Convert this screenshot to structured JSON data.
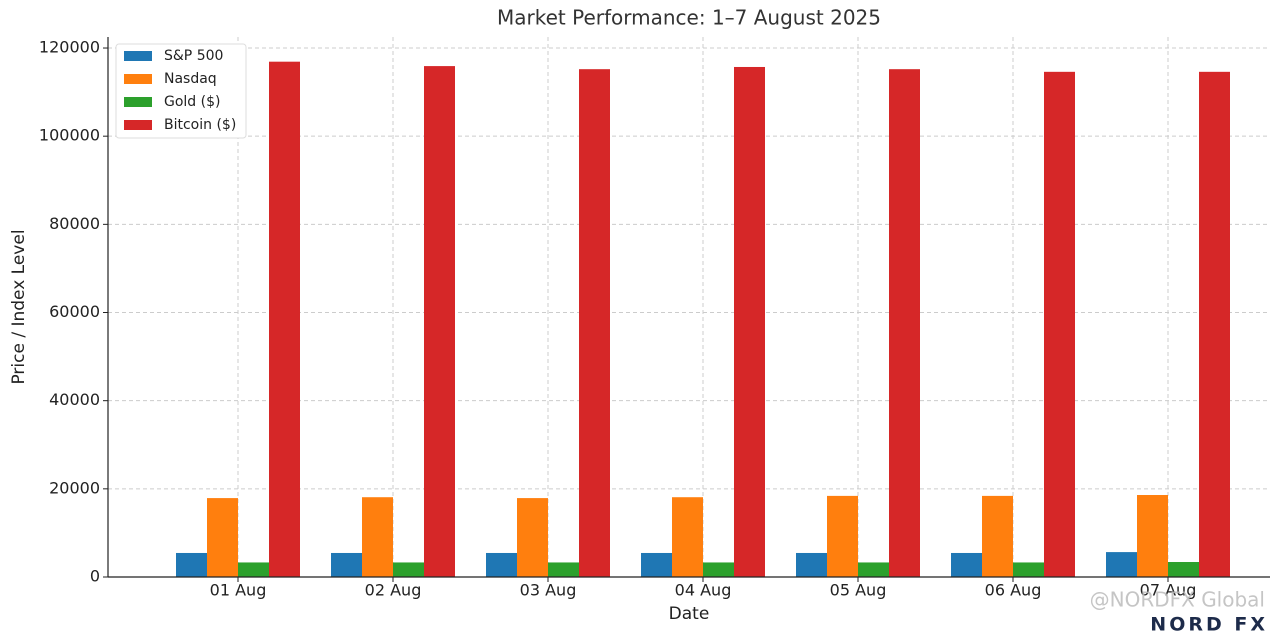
{
  "chart_data": {
    "type": "bar",
    "title": "Market Performance: 1–7 August 2025",
    "x_label": "Date",
    "y_label": "Price / Index Level",
    "categories": [
      "01 Aug",
      "02 Aug",
      "03 Aug",
      "04 Aug",
      "05 Aug",
      "06 Aug",
      "07 Aug"
    ],
    "series": [
      {
        "name": "S&P 500",
        "color": "#1f77b4",
        "values": [
          5450,
          5450,
          5450,
          5450,
          5450,
          5450,
          5650
        ]
      },
      {
        "name": "Nasdaq",
        "color": "#ff7f0e",
        "values": [
          17900,
          18100,
          17900,
          18100,
          18400,
          18400,
          18600
        ]
      },
      {
        "name": "Gold ($)",
        "color": "#2ca02c",
        "values": [
          3300,
          3300,
          3300,
          3300,
          3300,
          3300,
          3400
        ]
      },
      {
        "name": "Bitcoin ($)",
        "color": "#d62728",
        "values": [
          116900,
          115900,
          115200,
          115700,
          115200,
          114600,
          114600
        ]
      }
    ],
    "ylim": [
      0,
      122500
    ],
    "yticks": [
      0,
      20000,
      40000,
      60000,
      80000,
      100000,
      120000
    ],
    "grid": true,
    "legend": "upper-left",
    "watermark": "@NORDFX Global",
    "logo": "NORD FX"
  }
}
